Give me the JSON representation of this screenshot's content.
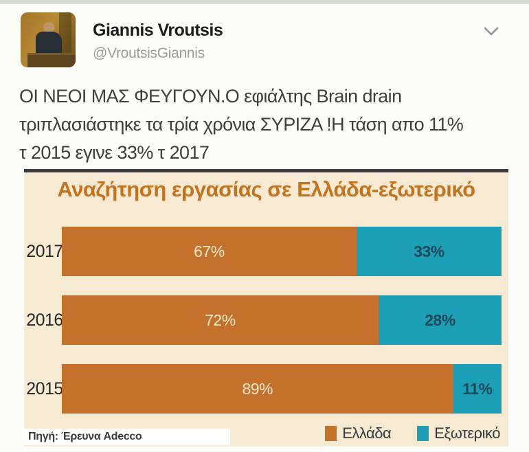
{
  "page": {
    "top_strip_color": "#d7dcd3",
    "background_color": "#fcfcf9"
  },
  "tweet": {
    "author_name": "Giannis Vroutsis",
    "author_handle": "@VroutsisGiannis",
    "lines": [
      "ΟΙ ΝΕΟΙ ΜΑΣ ΦΕΥΓΟΥΝ.Ο εφιάλτης Brain drain",
      "τριπλασιάστηκε τα τρία χρόνια ΣΥΡΙΖΑ !Η τάση απο 11%",
      "τ 2015 εγινε 33% τ 2017"
    ]
  },
  "chart_data": {
    "type": "bar",
    "orientation": "horizontal",
    "stacked": true,
    "title": "Αναζήτηση εργασίας σε Ελλάδα-εξωτερικό",
    "title_color": "#c4731c",
    "background_color": "#f7ead3",
    "categories": [
      "2017",
      "2016",
      "2015"
    ],
    "series": [
      {
        "name": "Ελλάδα",
        "color": "#c4712b",
        "values": [
          67,
          72,
          89
        ]
      },
      {
        "name": "Εξωτερικό",
        "color": "#1d9fb8",
        "values": [
          33,
          28,
          11
        ]
      }
    ],
    "value_suffix": "%",
    "xlim": [
      0,
      100
    ],
    "grid": false,
    "legend_position": "bottom-right",
    "source": "Πηγή: Έρευνα Adecco"
  }
}
